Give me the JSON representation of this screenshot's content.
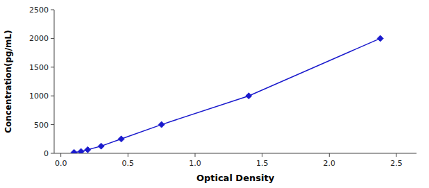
{
  "chart_data": {
    "type": "line",
    "xlabel": "Optical Density",
    "ylabel": "Concentration(pg/mL)",
    "x": [
      0.098,
      0.15,
      0.2,
      0.3,
      0.45,
      0.75,
      1.4,
      2.38
    ],
    "values": [
      15.6,
      31.25,
      62.5,
      125,
      250,
      500,
      1000,
      2000
    ],
    "color": "#1a1acd",
    "marker": "diamond",
    "line_style": "solid",
    "xlim": [
      -0.05,
      2.65
    ],
    "ylim": [
      0,
      2500
    ],
    "xticks": [
      {
        "value": 0,
        "label": "0.0"
      },
      0.5,
      {
        "value": 1.0,
        "label": "1.0"
      },
      1.5,
      {
        "value": 2.0,
        "label": "2.0"
      },
      2.5
    ],
    "yticks": [
      0,
      500,
      1000,
      1500,
      2000,
      2500
    ],
    "grid": false
  }
}
